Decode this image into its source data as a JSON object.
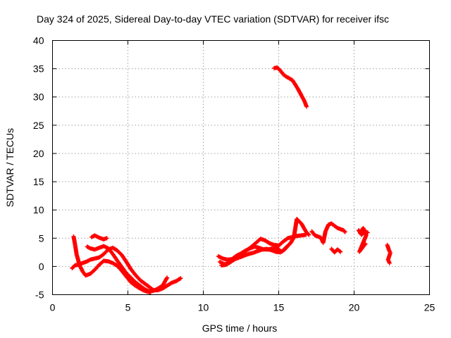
{
  "chart_data": {
    "type": "scatter",
    "title": "Day 324 of 2025, Sidereal Day-to-day VTEC variation (SDTVAR) for receiver ifsc",
    "xlabel": "GPS time / hours",
    "ylabel": "SDTVAR / TECUs",
    "xlim": [
      0,
      25
    ],
    "ylim": [
      -5,
      40
    ],
    "xticks": [
      "0",
      "5",
      "10",
      "15",
      "20",
      "25"
    ],
    "yticks": [
      "-5",
      "0",
      "5",
      "10",
      "15",
      "20",
      "25",
      "30",
      "35",
      "40"
    ],
    "grid": true,
    "marker": "plus",
    "colors": {
      "series": "#ff0000"
    },
    "series": [
      {
        "name": "arc1",
        "x": [
          1.3,
          1.5,
          1.7,
          1.9,
          2.1,
          2.3,
          2.5,
          2.8,
          3.1,
          3.4,
          3.7,
          4.0,
          4.3,
          4.6,
          4.9,
          5.2,
          5.5,
          5.8,
          6.1,
          6.4,
          6.7,
          7.0,
          7.3,
          7.6,
          7.9,
          8.2,
          8.5
        ],
        "y": [
          -0.3,
          0.2,
          0.3,
          0.5,
          0.7,
          0.9,
          1.2,
          1.4,
          1.6,
          2.2,
          3.0,
          3.3,
          2.8,
          2.0,
          0.8,
          -0.5,
          -1.5,
          -2.4,
          -3.0,
          -3.6,
          -4.2,
          -4.2,
          -3.9,
          -3.4,
          -2.9,
          -2.6,
          -2.1
        ]
      },
      {
        "name": "arc2",
        "x": [
          1.4,
          1.5,
          1.6,
          1.8,
          2.0,
          2.2,
          2.5,
          2.8,
          3.1,
          3.4,
          3.7,
          4.0,
          4.3,
          4.6,
          4.9,
          5.2,
          5.5,
          5.8,
          6.1,
          6.5
        ],
        "y": [
          5.3,
          3.8,
          2.1,
          0.2,
          -0.9,
          -1.6,
          -1.3,
          -0.6,
          0.3,
          1.0,
          0.9,
          0.6,
          0.1,
          -0.8,
          -1.8,
          -2.8,
          -3.4,
          -3.9,
          -4.3,
          -4.6
        ]
      },
      {
        "name": "arc3",
        "x": [
          2.3,
          2.5,
          2.8,
          3.1,
          3.4,
          3.7,
          4.0,
          4.3,
          4.6,
          4.9,
          5.2,
          5.5,
          5.8,
          6.1,
          6.4,
          6.7,
          7.0,
          7.3,
          7.6
        ],
        "y": [
          3.5,
          3.2,
          3.0,
          3.3,
          3.6,
          3.2,
          2.2,
          1.0,
          -0.1,
          -1.2,
          -2.0,
          -2.8,
          -3.4,
          -4.0,
          -4.4,
          -4.3,
          -3.9,
          -3.4,
          -2.0
        ]
      },
      {
        "name": "arc4",
        "x": [
          2.6,
          2.8,
          3.1,
          3.4,
          3.6
        ],
        "y": [
          5.2,
          5.5,
          5.1,
          4.8,
          5.0
        ]
      },
      {
        "name": "arc5",
        "x": [
          11.0,
          11.3,
          11.6,
          11.9,
          12.2,
          12.5,
          12.8,
          13.1,
          13.4,
          13.7,
          14.0,
          14.3,
          14.6,
          14.9,
          15.2,
          15.5,
          15.8,
          16.0,
          16.2,
          16.5,
          16.8,
          17.0
        ],
        "y": [
          1.8,
          1.4,
          1.2,
          1.3,
          1.9,
          2.3,
          2.8,
          3.2,
          3.5,
          3.3,
          3.0,
          3.0,
          3.2,
          3.2,
          2.6,
          3.4,
          4.2,
          5.1,
          8.4,
          7.6,
          6.2,
          5.6
        ]
      },
      {
        "name": "arc6",
        "x": [
          11.1,
          11.4,
          11.7,
          12.0,
          12.3,
          12.6,
          12.9,
          13.2,
          13.5,
          13.8,
          14.1,
          14.4,
          14.7,
          15.0,
          15.3,
          15.6,
          15.9,
          16.2,
          16.5,
          16.8
        ],
        "y": [
          0.8,
          0.4,
          0.6,
          1.2,
          1.8,
          2.4,
          2.9,
          3.5,
          4.2,
          4.9,
          4.6,
          4.1,
          3.8,
          3.7,
          4.4,
          5.0,
          5.2,
          5.4,
          5.5,
          5.6
        ]
      },
      {
        "name": "arc7",
        "x": [
          11.2,
          11.5,
          11.8,
          12.1,
          12.4,
          12.7,
          13.0,
          13.3,
          13.6,
          13.9,
          14.2,
          14.5,
          14.8,
          15.1,
          15.4,
          15.8
        ],
        "y": [
          0.2,
          0.3,
          0.8,
          1.3,
          1.6,
          1.9,
          2.2,
          2.4,
          2.7,
          3.0,
          3.1,
          2.9,
          2.6,
          2.5,
          3.0,
          4.2
        ]
      },
      {
        "name": "arc8",
        "x": [
          14.7,
          14.9,
          15.1,
          15.3,
          15.5,
          15.7,
          15.9,
          16.1,
          16.3,
          16.5,
          16.7,
          16.85
        ],
        "y": [
          35.1,
          35.2,
          34.7,
          34.0,
          33.6,
          33.3,
          33.0,
          32.2,
          31.3,
          30.3,
          29.3,
          28.3
        ]
      },
      {
        "name": "arc9",
        "x": [
          17.2,
          17.4,
          17.6,
          17.8,
          17.95,
          18.1,
          18.3,
          18.5,
          18.7,
          18.9,
          19.1,
          19.3,
          19.4
        ],
        "y": [
          6.2,
          5.5,
          5.3,
          5.1,
          4.2,
          6.2,
          7.4,
          7.6,
          7.2,
          6.8,
          6.6,
          6.4,
          6.1
        ]
      },
      {
        "name": "arc10",
        "x": [
          18.5,
          18.7,
          18.9,
          19.1
        ],
        "y": [
          3.1,
          2.5,
          3.0,
          2.6
        ]
      },
      {
        "name": "arc11",
        "x": [
          20.3,
          20.5,
          20.7,
          20.9,
          20.4,
          20.6,
          20.8,
          20.35,
          20.55,
          20.75
        ],
        "y": [
          6.4,
          5.6,
          6.3,
          6.0,
          5.9,
          6.8,
          5.5,
          2.6,
          3.3,
          4.0
        ]
      },
      {
        "name": "arc12",
        "x": [
          22.2,
          22.3,
          22.4,
          22.25,
          22.35
        ],
        "y": [
          3.8,
          3.0,
          2.4,
          1.2,
          0.6
        ]
      }
    ]
  }
}
